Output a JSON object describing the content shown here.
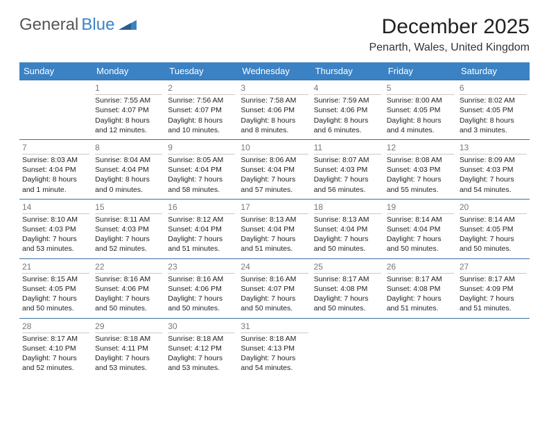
{
  "brand": {
    "part1": "General",
    "part2": "Blue"
  },
  "title": "December 2025",
  "location": "Penarth, Wales, United Kingdom",
  "colors": {
    "header_bg": "#3b82c4",
    "header_text": "#ffffff",
    "divider": "#3b6fa0",
    "daynum": "#777777",
    "text": "#222222"
  },
  "day_headers": [
    "Sunday",
    "Monday",
    "Tuesday",
    "Wednesday",
    "Thursday",
    "Friday",
    "Saturday"
  ],
  "weeks": [
    [
      {
        "n": "",
        "sr": "",
        "ss": "",
        "dl": ""
      },
      {
        "n": "1",
        "sr": "Sunrise: 7:55 AM",
        "ss": "Sunset: 4:07 PM",
        "dl": "Daylight: 8 hours and 12 minutes."
      },
      {
        "n": "2",
        "sr": "Sunrise: 7:56 AM",
        "ss": "Sunset: 4:07 PM",
        "dl": "Daylight: 8 hours and 10 minutes."
      },
      {
        "n": "3",
        "sr": "Sunrise: 7:58 AM",
        "ss": "Sunset: 4:06 PM",
        "dl": "Daylight: 8 hours and 8 minutes."
      },
      {
        "n": "4",
        "sr": "Sunrise: 7:59 AM",
        "ss": "Sunset: 4:06 PM",
        "dl": "Daylight: 8 hours and 6 minutes."
      },
      {
        "n": "5",
        "sr": "Sunrise: 8:00 AM",
        "ss": "Sunset: 4:05 PM",
        "dl": "Daylight: 8 hours and 4 minutes."
      },
      {
        "n": "6",
        "sr": "Sunrise: 8:02 AM",
        "ss": "Sunset: 4:05 PM",
        "dl": "Daylight: 8 hours and 3 minutes."
      }
    ],
    [
      {
        "n": "7",
        "sr": "Sunrise: 8:03 AM",
        "ss": "Sunset: 4:04 PM",
        "dl": "Daylight: 8 hours and 1 minute."
      },
      {
        "n": "8",
        "sr": "Sunrise: 8:04 AM",
        "ss": "Sunset: 4:04 PM",
        "dl": "Daylight: 8 hours and 0 minutes."
      },
      {
        "n": "9",
        "sr": "Sunrise: 8:05 AM",
        "ss": "Sunset: 4:04 PM",
        "dl": "Daylight: 7 hours and 58 minutes."
      },
      {
        "n": "10",
        "sr": "Sunrise: 8:06 AM",
        "ss": "Sunset: 4:04 PM",
        "dl": "Daylight: 7 hours and 57 minutes."
      },
      {
        "n": "11",
        "sr": "Sunrise: 8:07 AM",
        "ss": "Sunset: 4:03 PM",
        "dl": "Daylight: 7 hours and 56 minutes."
      },
      {
        "n": "12",
        "sr": "Sunrise: 8:08 AM",
        "ss": "Sunset: 4:03 PM",
        "dl": "Daylight: 7 hours and 55 minutes."
      },
      {
        "n": "13",
        "sr": "Sunrise: 8:09 AM",
        "ss": "Sunset: 4:03 PM",
        "dl": "Daylight: 7 hours and 54 minutes."
      }
    ],
    [
      {
        "n": "14",
        "sr": "Sunrise: 8:10 AM",
        "ss": "Sunset: 4:03 PM",
        "dl": "Daylight: 7 hours and 53 minutes."
      },
      {
        "n": "15",
        "sr": "Sunrise: 8:11 AM",
        "ss": "Sunset: 4:03 PM",
        "dl": "Daylight: 7 hours and 52 minutes."
      },
      {
        "n": "16",
        "sr": "Sunrise: 8:12 AM",
        "ss": "Sunset: 4:04 PM",
        "dl": "Daylight: 7 hours and 51 minutes."
      },
      {
        "n": "17",
        "sr": "Sunrise: 8:13 AM",
        "ss": "Sunset: 4:04 PM",
        "dl": "Daylight: 7 hours and 51 minutes."
      },
      {
        "n": "18",
        "sr": "Sunrise: 8:13 AM",
        "ss": "Sunset: 4:04 PM",
        "dl": "Daylight: 7 hours and 50 minutes."
      },
      {
        "n": "19",
        "sr": "Sunrise: 8:14 AM",
        "ss": "Sunset: 4:04 PM",
        "dl": "Daylight: 7 hours and 50 minutes."
      },
      {
        "n": "20",
        "sr": "Sunrise: 8:14 AM",
        "ss": "Sunset: 4:05 PM",
        "dl": "Daylight: 7 hours and 50 minutes."
      }
    ],
    [
      {
        "n": "21",
        "sr": "Sunrise: 8:15 AM",
        "ss": "Sunset: 4:05 PM",
        "dl": "Daylight: 7 hours and 50 minutes."
      },
      {
        "n": "22",
        "sr": "Sunrise: 8:16 AM",
        "ss": "Sunset: 4:06 PM",
        "dl": "Daylight: 7 hours and 50 minutes."
      },
      {
        "n": "23",
        "sr": "Sunrise: 8:16 AM",
        "ss": "Sunset: 4:06 PM",
        "dl": "Daylight: 7 hours and 50 minutes."
      },
      {
        "n": "24",
        "sr": "Sunrise: 8:16 AM",
        "ss": "Sunset: 4:07 PM",
        "dl": "Daylight: 7 hours and 50 minutes."
      },
      {
        "n": "25",
        "sr": "Sunrise: 8:17 AM",
        "ss": "Sunset: 4:08 PM",
        "dl": "Daylight: 7 hours and 50 minutes."
      },
      {
        "n": "26",
        "sr": "Sunrise: 8:17 AM",
        "ss": "Sunset: 4:08 PM",
        "dl": "Daylight: 7 hours and 51 minutes."
      },
      {
        "n": "27",
        "sr": "Sunrise: 8:17 AM",
        "ss": "Sunset: 4:09 PM",
        "dl": "Daylight: 7 hours and 51 minutes."
      }
    ],
    [
      {
        "n": "28",
        "sr": "Sunrise: 8:17 AM",
        "ss": "Sunset: 4:10 PM",
        "dl": "Daylight: 7 hours and 52 minutes."
      },
      {
        "n": "29",
        "sr": "Sunrise: 8:18 AM",
        "ss": "Sunset: 4:11 PM",
        "dl": "Daylight: 7 hours and 53 minutes."
      },
      {
        "n": "30",
        "sr": "Sunrise: 8:18 AM",
        "ss": "Sunset: 4:12 PM",
        "dl": "Daylight: 7 hours and 53 minutes."
      },
      {
        "n": "31",
        "sr": "Sunrise: 8:18 AM",
        "ss": "Sunset: 4:13 PM",
        "dl": "Daylight: 7 hours and 54 minutes."
      },
      {
        "n": "",
        "sr": "",
        "ss": "",
        "dl": ""
      },
      {
        "n": "",
        "sr": "",
        "ss": "",
        "dl": ""
      },
      {
        "n": "",
        "sr": "",
        "ss": "",
        "dl": ""
      }
    ]
  ]
}
